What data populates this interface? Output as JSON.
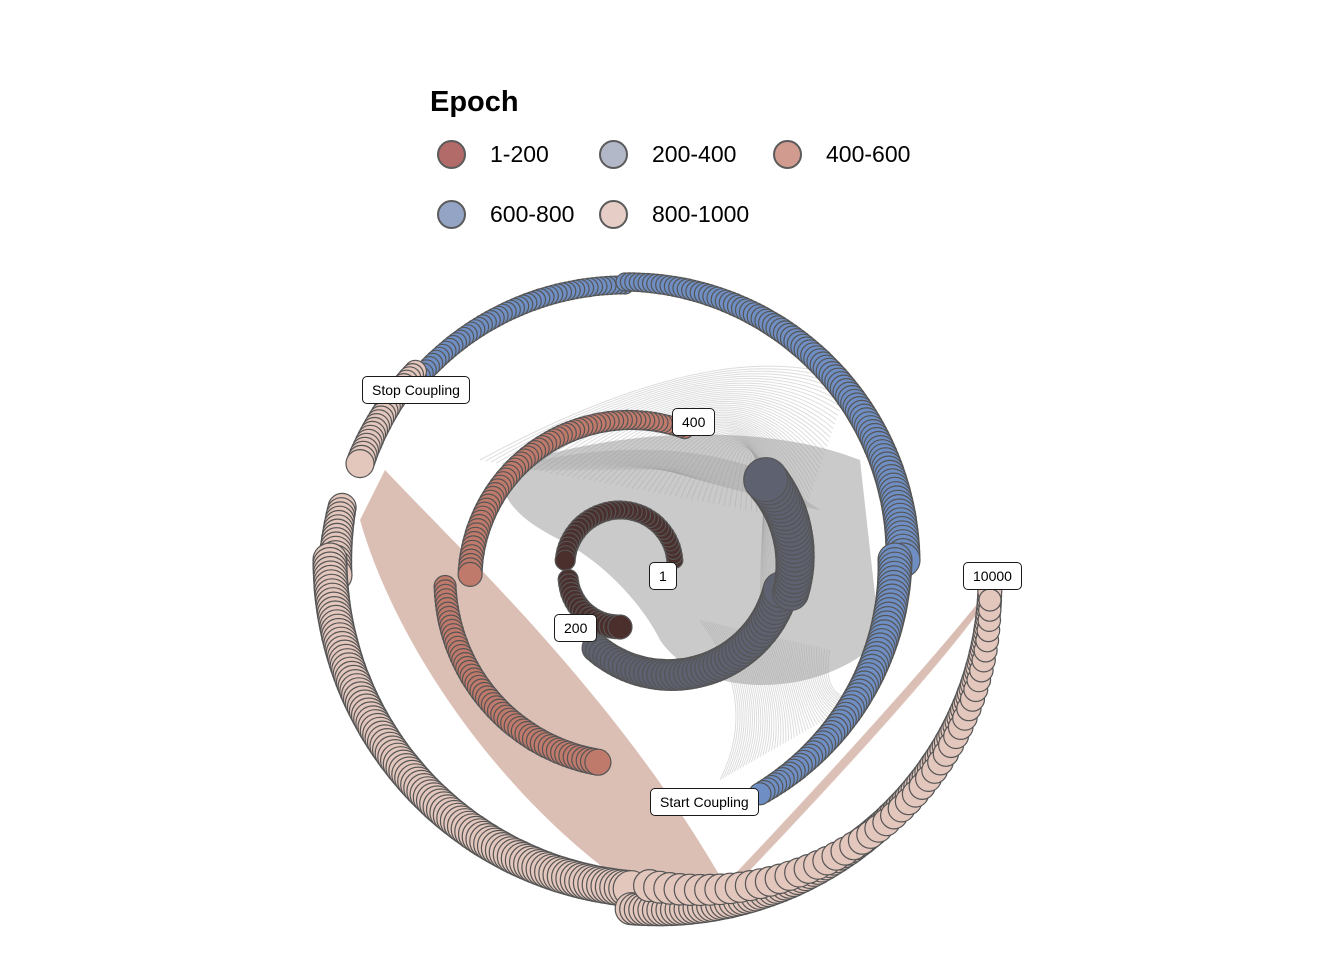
{
  "legend": {
    "title": "Epoch",
    "items": [
      {
        "label": "1-200",
        "color": "#b26b68"
      },
      {
        "label": "200-400",
        "color": "#b3b8c9"
      },
      {
        "label": "400-600",
        "color": "#d29b8f"
      },
      {
        "label": "600-800",
        "color": "#93a4c5"
      },
      {
        "label": "800-1000",
        "color": "#e6cdc6"
      }
    ]
  },
  "annotations": {
    "stop_coupling": "Stop Coupling",
    "start_coupling": "Start Coupling",
    "epoch_1": "1",
    "epoch_200": "200",
    "epoch_400": "400",
    "epoch_10000": "10000"
  },
  "colors": {
    "node_outline": "#555555",
    "arc_gray": "#9e9e9e",
    "arc_pink": "#d7b8ad",
    "seg_1_200": "#4a2f2d",
    "seg_200_400": "#5e6170",
    "seg_400_600": "#c07a6b",
    "seg_600_800": "#6f8fc4",
    "seg_800_1000": "#e3c6bc"
  }
}
